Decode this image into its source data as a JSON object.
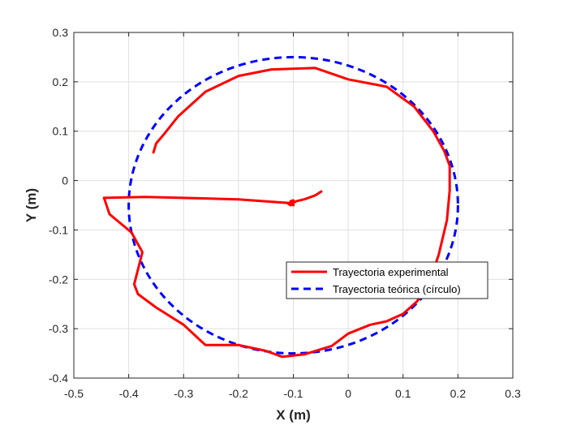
{
  "chart_data": {
    "type": "line",
    "title": "",
    "xlabel": "X (m)",
    "ylabel": "Y (m)",
    "xlim": [
      -0.5,
      0.3
    ],
    "ylim": [
      -0.4,
      0.3
    ],
    "xticks": [
      -0.5,
      -0.4,
      -0.3,
      -0.2,
      -0.1,
      0,
      0.1,
      0.2,
      0.3
    ],
    "yticks": [
      -0.4,
      -0.3,
      -0.2,
      -0.1,
      0,
      0.1,
      0.2,
      0.3
    ],
    "xtick_labels": [
      "-0.5",
      "-0.4",
      "-0.3",
      "-0.2",
      "-0.1",
      "0",
      "0.1",
      "0.2",
      "0.3"
    ],
    "ytick_labels": [
      "-0.4",
      "-0.3",
      "-0.2",
      "-0.1",
      "0",
      "0.1",
      "0.2",
      "0.3"
    ],
    "grid": true,
    "legend_position": "lower-right",
    "series": [
      {
        "name": "Trayectoria experimental",
        "color": "#ff0000",
        "style": "solid",
        "x": [
          -0.049,
          -0.06,
          -0.08,
          -0.095,
          -0.1,
          -0.105,
          -0.1,
          -0.1,
          -0.1,
          -0.11,
          -0.105,
          -0.1,
          -0.2,
          -0.37,
          -0.445,
          -0.435,
          -0.395,
          -0.375,
          -0.39,
          -0.383,
          -0.35,
          -0.3,
          -0.27,
          -0.26,
          -0.2,
          -0.15,
          -0.12,
          -0.08,
          -0.03,
          0.0,
          0.04,
          0.07,
          0.1,
          0.125,
          0.145,
          0.165,
          0.18,
          0.185,
          0.185,
          0.175,
          0.155,
          0.12,
          0.07,
          0.0,
          -0.06,
          -0.14,
          -0.2,
          -0.26,
          -0.31,
          -0.335,
          -0.35,
          -0.355
        ],
        "y": [
          -0.022,
          -0.03,
          -0.038,
          -0.042,
          -0.045,
          -0.042,
          -0.04,
          -0.05,
          -0.048,
          -0.046,
          -0.05,
          -0.046,
          -0.038,
          -0.033,
          -0.035,
          -0.068,
          -0.105,
          -0.145,
          -0.21,
          -0.23,
          -0.257,
          -0.292,
          -0.323,
          -0.333,
          -0.333,
          -0.345,
          -0.357,
          -0.352,
          -0.335,
          -0.31,
          -0.292,
          -0.285,
          -0.27,
          -0.245,
          -0.215,
          -0.15,
          -0.08,
          -0.02,
          0.03,
          0.06,
          0.1,
          0.15,
          0.19,
          0.205,
          0.228,
          0.225,
          0.212,
          0.18,
          0.13,
          0.095,
          0.075,
          0.057
        ]
      },
      {
        "name": "Trayectoria teórica (círculo)",
        "color": "#0000ff",
        "style": "dashed",
        "center": [
          -0.1,
          -0.05
        ],
        "radius": 0.3
      }
    ]
  }
}
